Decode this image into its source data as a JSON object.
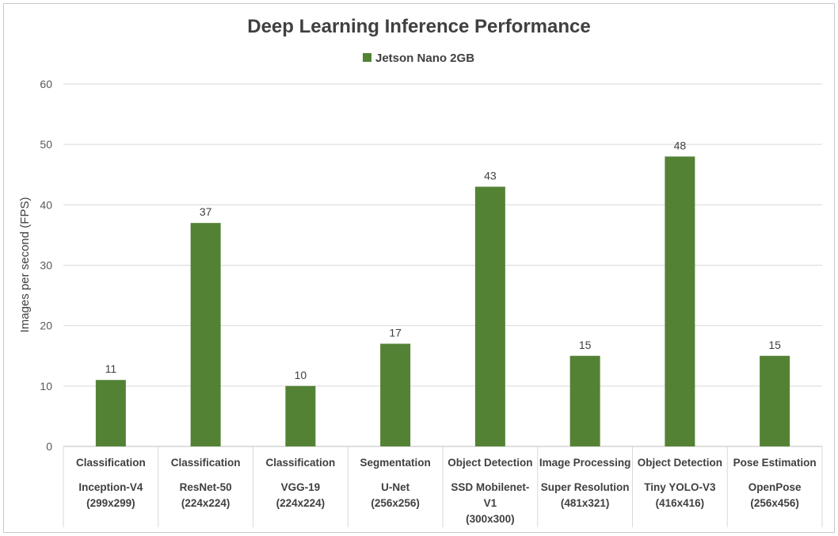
{
  "chart_data": {
    "type": "bar",
    "title": "Deep Learning Inference Performance",
    "ylabel": "Images per second (FPS)",
    "xlabel": "",
    "ylim": [
      0,
      60
    ],
    "yticks": [
      0,
      10,
      20,
      30,
      40,
      50,
      60
    ],
    "grid": true,
    "legend": "top-center",
    "color": "#548235",
    "categories": [
      {
        "group": "Classification",
        "lines": [
          "Inception-V4",
          "(299x299)"
        ]
      },
      {
        "group": "Classification",
        "lines": [
          "ResNet-50",
          "(224x224)"
        ]
      },
      {
        "group": "Classification",
        "lines": [
          "VGG-19",
          "(224x224)"
        ]
      },
      {
        "group": "Segmentation",
        "lines": [
          "U-Net",
          "(256x256)"
        ]
      },
      {
        "group": "Object Detection",
        "lines": [
          "SSD Mobilenet-",
          "V1",
          "(300x300)"
        ]
      },
      {
        "group": "Image Processing",
        "lines": [
          "Super Resolution",
          "(481x321)"
        ]
      },
      {
        "group": "Object Detection",
        "lines": [
          "Tiny YOLO-V3",
          "(416x416)"
        ]
      },
      {
        "group": "Pose Estimation",
        "lines": [
          "OpenPose",
          "(256x456)"
        ]
      }
    ],
    "series": [
      {
        "name": "Jetson Nano 2GB",
        "values": [
          11,
          37,
          10,
          17,
          43,
          15,
          48,
          15
        ]
      }
    ]
  }
}
